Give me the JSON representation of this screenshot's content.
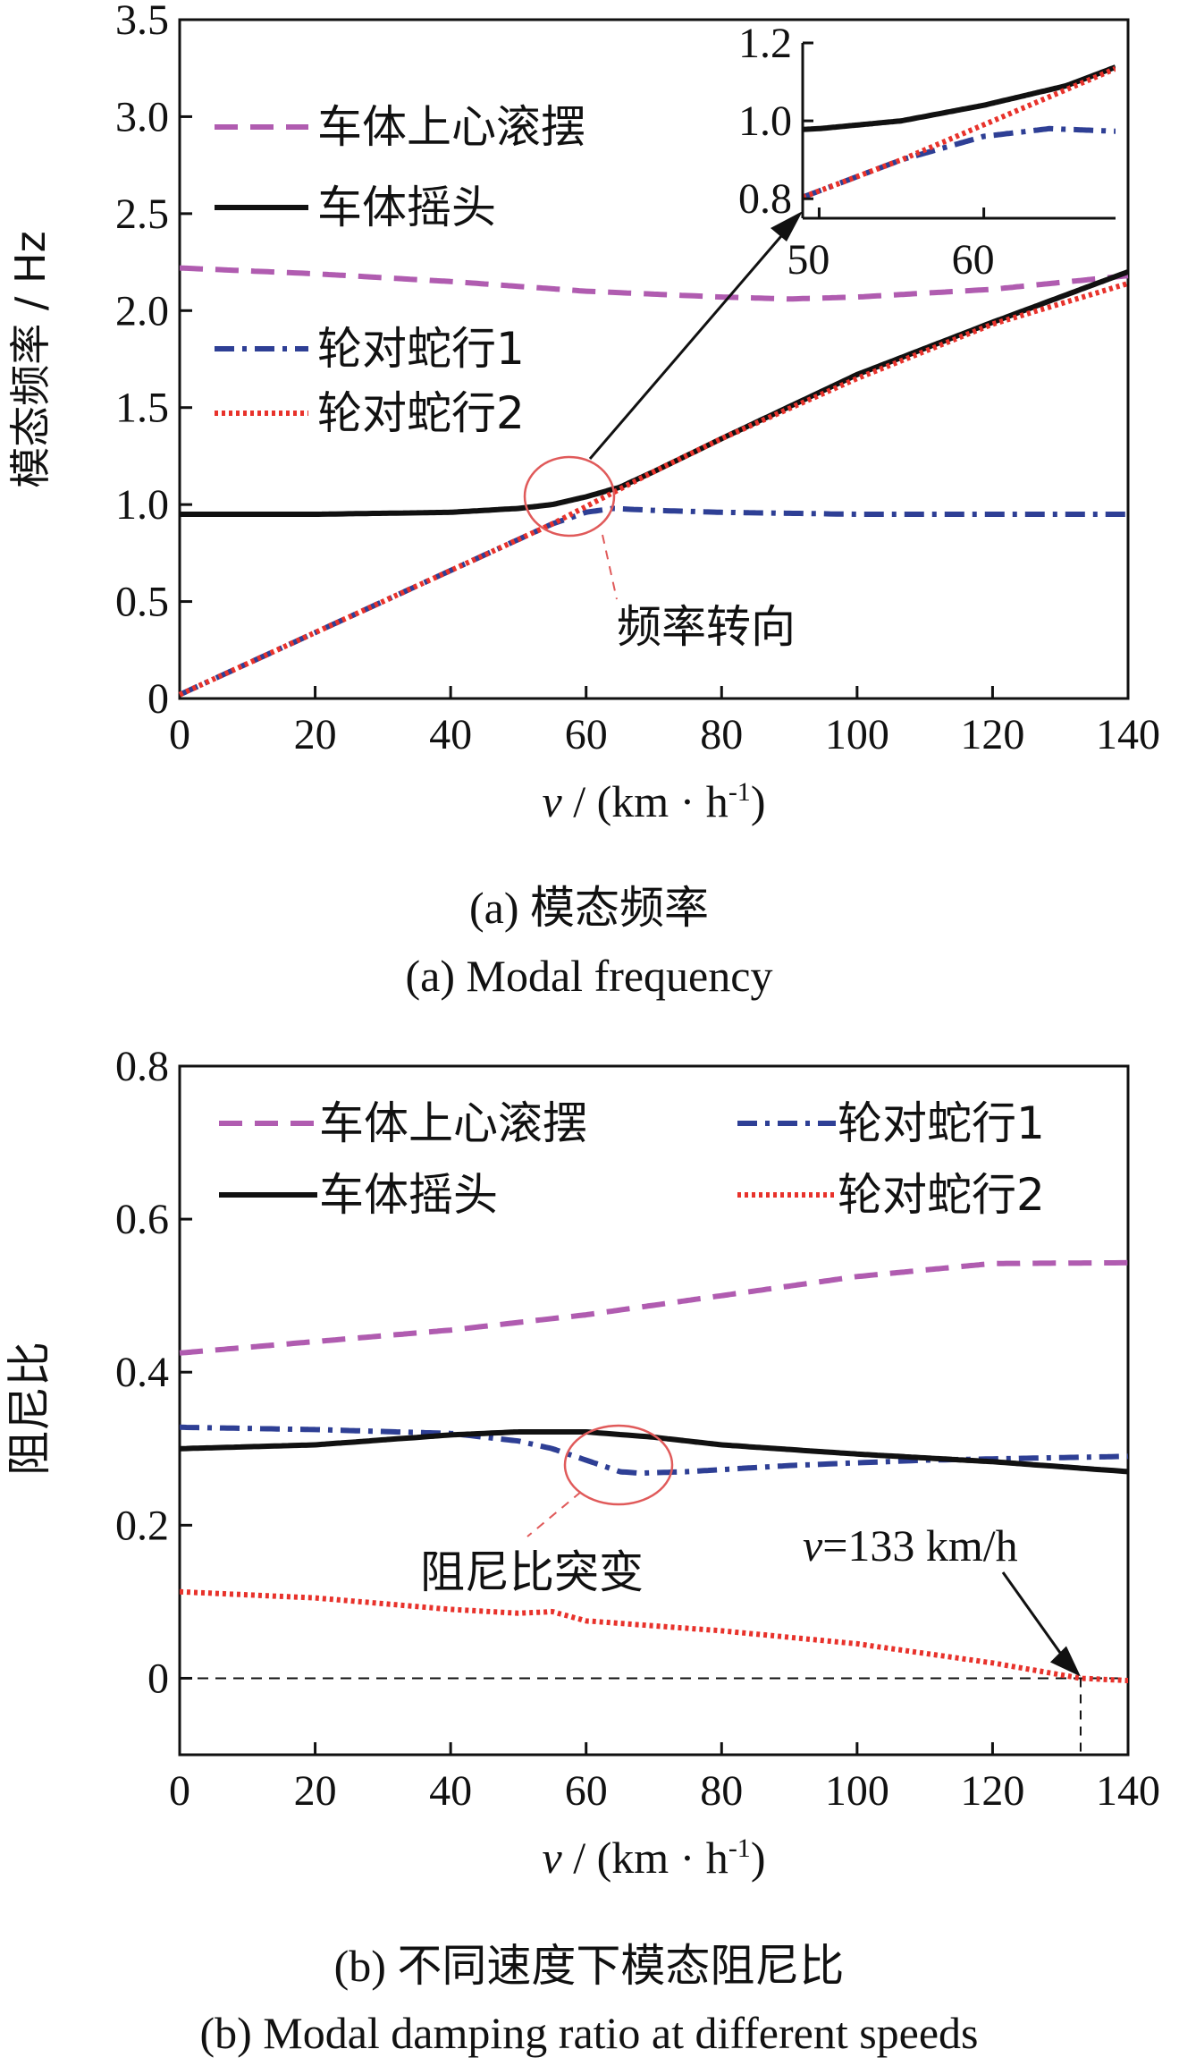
{
  "colors": {
    "roll": "#b05cb0",
    "yaw": "#111111",
    "hunt1": "#2e3f95",
    "hunt2": "#e8322b",
    "annotation": "#e05a5a"
  },
  "chart_data": [
    {
      "type": "line",
      "title": "模态频率",
      "ylabel": "模态频率 / Hz",
      "xlabel": "v / (km · h⁻¹)",
      "xlabel_var": "v",
      "xlabel_unit": " / (km · h",
      "xlabel_exp": "-1",
      "xlabel_close": ")",
      "xlim": [
        0,
        140
      ],
      "ylim": [
        0,
        3.5
      ],
      "xticks": [
        0,
        20,
        40,
        60,
        80,
        100,
        120,
        140
      ],
      "yticks": [
        0,
        0.5,
        1.0,
        1.5,
        2.0,
        2.5,
        3.0,
        3.5
      ],
      "ytick_labels": [
        "0",
        "0.5",
        "1.0",
        "1.5",
        "2.0",
        "2.5",
        "3.0",
        "3.5"
      ],
      "legend_position": "left",
      "series": [
        {
          "name": "车体上心滚摆",
          "style": "dashed",
          "color_key": "roll",
          "x": [
            0,
            20,
            40,
            60,
            80,
            90,
            100,
            120,
            140
          ],
          "y": [
            2.22,
            2.19,
            2.15,
            2.1,
            2.07,
            2.06,
            2.07,
            2.11,
            2.18
          ]
        },
        {
          "name": "车体摇头",
          "style": "solid",
          "color_key": "yaw",
          "x": [
            0,
            20,
            40,
            50,
            55,
            60,
            65,
            70,
            80,
            100,
            120,
            140
          ],
          "y": [
            0.95,
            0.95,
            0.96,
            0.98,
            1.0,
            1.04,
            1.09,
            1.17,
            1.34,
            1.67,
            1.94,
            2.2
          ]
        },
        {
          "name": "轮对蛇行1",
          "style": "dashdot",
          "color_key": "hunt1",
          "x": [
            0,
            10,
            20,
            30,
            40,
            50,
            55,
            60,
            64,
            70,
            80,
            100,
            120,
            140
          ],
          "y": [
            0.02,
            0.18,
            0.34,
            0.5,
            0.66,
            0.82,
            0.9,
            0.96,
            0.98,
            0.97,
            0.96,
            0.95,
            0.95,
            0.95
          ]
        },
        {
          "name": "轮对蛇行2",
          "style": "dotted",
          "color_key": "hunt2",
          "x": [
            0,
            10,
            20,
            30,
            40,
            50,
            55,
            60,
            65,
            70,
            80,
            100,
            120,
            140
          ],
          "y": [
            0.02,
            0.18,
            0.34,
            0.5,
            0.66,
            0.82,
            0.9,
            0.99,
            1.08,
            1.17,
            1.34,
            1.65,
            1.93,
            2.14
          ]
        }
      ],
      "inset": {
        "xlim": [
          49,
          68
        ],
        "ylim": [
          0.75,
          1.2
        ],
        "xticks": [
          50,
          60
        ],
        "yticks": [
          0.8,
          1.0,
          1.2
        ],
        "ytick_labels": [
          "0.8",
          "1.0",
          "1.2"
        ]
      },
      "annotation": "频率转向"
    },
    {
      "type": "line",
      "title": "不同速度下模态阻尼比",
      "ylabel": "阻尼比",
      "xlabel": "v / (km · h⁻¹)",
      "xlabel_var": "v",
      "xlabel_unit": " / (km · h",
      "xlabel_exp": "-1",
      "xlabel_close": ")",
      "xlim": [
        0,
        140
      ],
      "ylim": [
        -0.1,
        0.8
      ],
      "xticks": [
        0,
        20,
        40,
        60,
        80,
        100,
        120,
        140
      ],
      "yticks": [
        0,
        0.2,
        0.4,
        0.6,
        0.8
      ],
      "ytick_labels": [
        "0",
        "0.2",
        "0.4",
        "0.6",
        "0.8"
      ],
      "legend_position": "top",
      "series": [
        {
          "name": "车体上心滚摆",
          "style": "dashed",
          "color_key": "roll",
          "x": [
            0,
            20,
            40,
            60,
            80,
            100,
            120,
            140
          ],
          "y": [
            0.425,
            0.44,
            0.455,
            0.475,
            0.5,
            0.525,
            0.542,
            0.543
          ]
        },
        {
          "name": "轮对蛇行1",
          "style": "dashdot",
          "color_key": "hunt1",
          "x": [
            0,
            20,
            40,
            50,
            55,
            60,
            65,
            68,
            75,
            90,
            110,
            140
          ],
          "y": [
            0.328,
            0.325,
            0.32,
            0.31,
            0.3,
            0.285,
            0.27,
            0.268,
            0.27,
            0.278,
            0.285,
            0.29
          ]
        },
        {
          "name": "车体摇头",
          "style": "solid",
          "color_key": "yaw",
          "x": [
            0,
            20,
            40,
            50,
            60,
            70,
            80,
            100,
            120,
            140
          ],
          "y": [
            0.3,
            0.305,
            0.318,
            0.322,
            0.322,
            0.315,
            0.305,
            0.293,
            0.283,
            0.27
          ]
        },
        {
          "name": "轮对蛇行2",
          "style": "dotted",
          "color_key": "hunt2",
          "x": [
            0,
            20,
            40,
            50,
            55,
            60,
            80,
            100,
            120,
            133,
            140
          ],
          "y": [
            0.113,
            0.105,
            0.09,
            0.085,
            0.087,
            0.075,
            0.062,
            0.045,
            0.02,
            0.0,
            -0.003
          ]
        }
      ],
      "annotation": "阻尼比突变",
      "point_annotation": {
        "label": "v=133 km/h",
        "label_var": "v",
        "label_rest": "=133 km/h",
        "x": 133,
        "y": 0
      }
    }
  ],
  "captions": {
    "a_zh": "(a)  模态频率",
    "a_en": "(a)  Modal frequency",
    "b_zh": "(b)  不同速度下模态阻尼比",
    "b_en": "(b)  Modal damping ratio at different speeds"
  }
}
